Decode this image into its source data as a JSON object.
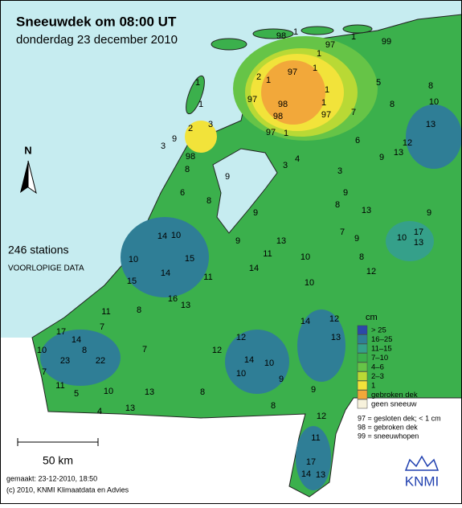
{
  "header": {
    "title": "Sneeuwdek om 08:00 UT",
    "subtitle": "donderdag 23 december 2010"
  },
  "north": "N",
  "stations_count": "246 stations",
  "status": "VOORLOPIGE DATA",
  "legend": {
    "unit": "cm",
    "items": [
      {
        "label": "> 25",
        "color": "#2c48a8"
      },
      {
        "label": "16–25",
        "color": "#2f7e96"
      },
      {
        "label": "11–15",
        "color": "#35a08a"
      },
      {
        "label": "7–10",
        "color": "#3bb04c"
      },
      {
        "label": "4–6",
        "color": "#66c447"
      },
      {
        "label": "2–3",
        "color": "#b9d935"
      },
      {
        "label": "1",
        "color": "#f2e33a"
      },
      {
        "label": "gebroken dek",
        "color": "#f2a83a"
      },
      {
        "label": "geen sneeuw",
        "color": "#f7f2dc"
      }
    ]
  },
  "notes": [
    "97 = gesloten dek; < 1 cm",
    "98 = gebroken dek",
    "99 = sneeuwhopen"
  ],
  "scale": "50 km",
  "made": "gemaakt: 23-12-2010, 18:50",
  "copyright": "(c) 2010, KNMI Klimaatdata en Advies",
  "logo": "KNMI",
  "stations": [
    98,
    1,
    97,
    1,
    99,
    1,
    1,
    97,
    2,
    1,
    98,
    98,
    1,
    1,
    97,
    97,
    1,
    1,
    3,
    2,
    1,
    97,
    7,
    8,
    5,
    8,
    10,
    13,
    12,
    13,
    9,
    6,
    3,
    4,
    3,
    98,
    9,
    3,
    8,
    6,
    8,
    9,
    10,
    14,
    10,
    15,
    14,
    11,
    15,
    9,
    9,
    13,
    10,
    8,
    13,
    9,
    17,
    13,
    9,
    10,
    8,
    7,
    11,
    14,
    10,
    12,
    16,
    13,
    11,
    8,
    7,
    17,
    14,
    10,
    8,
    23,
    22,
    7,
    11,
    5,
    4,
    10,
    13,
    7,
    12,
    12,
    14,
    10,
    14,
    13,
    12,
    9,
    8,
    9,
    12,
    11,
    17,
    14,
    13,
    9,
    10,
    8,
    13
  ]
}
